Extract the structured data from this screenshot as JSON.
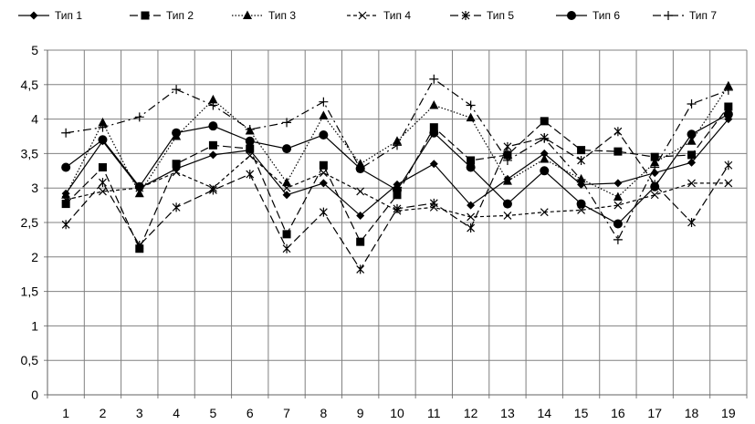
{
  "chart_data": {
    "type": "line",
    "title": "",
    "xlabel": "",
    "ylabel": "",
    "x": [
      "1",
      "2",
      "3",
      "4",
      "5",
      "6",
      "7",
      "8",
      "9",
      "10",
      "11",
      "12",
      "13",
      "14",
      "15",
      "16",
      "17",
      "18",
      "19"
    ],
    "ylim": [
      0,
      5
    ],
    "yticks": [
      "0",
      "0,5",
      "1",
      "1,5",
      "2",
      "2,5",
      "3",
      "3,5",
      "4",
      "4,5",
      "5"
    ],
    "grid": true,
    "legend_position": "top",
    "series": [
      {
        "name": "Тип 1",
        "marker": "diamond",
        "dash": "solid",
        "values": [
          2.92,
          3.68,
          3.0,
          3.28,
          3.48,
          3.55,
          2.9,
          3.07,
          2.6,
          3.05,
          3.35,
          2.75,
          3.13,
          3.5,
          3.05,
          3.07,
          3.22,
          3.37,
          4.0
        ]
      },
      {
        "name": "Тип 2",
        "marker": "square",
        "dash": "longdash",
        "values": [
          2.77,
          3.3,
          2.12,
          3.35,
          3.62,
          3.57,
          2.33,
          3.33,
          2.22,
          2.9,
          3.88,
          3.4,
          3.48,
          3.97,
          3.55,
          3.53,
          3.45,
          3.48,
          4.18
        ]
      },
      {
        "name": "Тип 3",
        "marker": "triangle",
        "dash": "dotted",
        "values": [
          2.9,
          3.95,
          2.92,
          3.75,
          4.28,
          3.83,
          3.08,
          4.05,
          3.35,
          3.68,
          4.2,
          4.02,
          3.1,
          3.42,
          3.13,
          2.87,
          3.37,
          3.68,
          4.48
        ]
      },
      {
        "name": "Тип 4",
        "marker": "x",
        "dash": "shortdash",
        "values": [
          2.83,
          2.95,
          3.0,
          3.23,
          3.0,
          3.47,
          3.0,
          3.22,
          2.95,
          2.67,
          2.72,
          2.58,
          2.6,
          2.65,
          2.68,
          2.75,
          2.9,
          3.07,
          3.07
        ]
      },
      {
        "name": "Тип 5",
        "marker": "star",
        "dash": "longdash",
        "values": [
          2.47,
          3.08,
          2.17,
          2.72,
          2.97,
          3.2,
          2.12,
          2.65,
          1.82,
          2.7,
          2.78,
          2.42,
          3.6,
          3.73,
          3.4,
          3.82,
          3.05,
          2.5,
          3.33
        ]
      },
      {
        "name": "Тип 6",
        "marker": "circle",
        "dash": "solid",
        "values": [
          3.3,
          3.7,
          3.02,
          3.8,
          3.9,
          3.68,
          3.57,
          3.77,
          3.28,
          2.97,
          3.8,
          3.3,
          2.77,
          3.25,
          2.77,
          2.48,
          3.02,
          3.78,
          4.07
        ]
      },
      {
        "name": "Тип 7",
        "marker": "plus",
        "dash": "dashdot",
        "values": [
          3.8,
          3.88,
          4.03,
          4.43,
          4.2,
          3.85,
          3.95,
          4.25,
          3.28,
          3.62,
          4.58,
          4.2,
          3.4,
          3.72,
          3.12,
          2.25,
          3.3,
          4.22,
          4.42
        ]
      }
    ]
  }
}
